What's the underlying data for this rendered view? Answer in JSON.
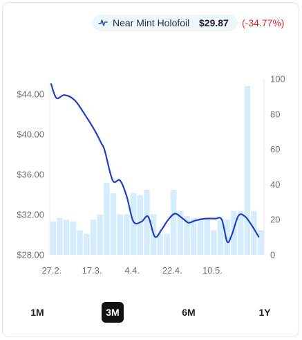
{
  "header": {
    "label": "Near Mint Holofoil",
    "price": "$29.87",
    "change": "(-34.77%)",
    "icon": "line-chart-icon",
    "change_color": "#d7262e"
  },
  "range_buttons": [
    {
      "label": "1M",
      "active": false
    },
    {
      "label": "3M",
      "active": true
    },
    {
      "label": "6M",
      "active": false
    },
    {
      "label": "1Y",
      "active": false
    }
  ],
  "chart_data": {
    "type": "line",
    "title": "",
    "x_tick_labels": [
      "27.2.",
      "17.3.",
      "4.4.",
      "22.4.",
      "10.5."
    ],
    "left_axis": {
      "ticks": [
        "$44.00",
        "$40.00",
        "$36.00",
        "$32.00",
        "$28.00"
      ],
      "ylim": [
        28,
        45.5
      ]
    },
    "right_axis": {
      "ticks": [
        "100",
        "80",
        "60",
        "40",
        "20",
        "0"
      ],
      "ylim": [
        0,
        100
      ]
    },
    "grid": false,
    "line_color": "#1f3fc0",
    "bar_color": "#d4ecfb",
    "series": [
      {
        "kind": "bars",
        "axis": "right",
        "values": [
          19,
          21,
          20,
          19,
          14,
          12,
          20,
          23,
          41,
          35,
          23,
          23,
          35,
          34,
          37,
          23,
          12,
          12,
          37,
          25,
          22,
          21,
          21,
          21,
          14,
          20,
          20,
          25,
          25,
          96,
          25,
          14
        ]
      },
      {
        "kind": "line",
        "axis": "left",
        "points": [
          [
            0,
            45.0
          ],
          [
            0.8,
            43.6
          ],
          [
            2.0,
            43.9
          ],
          [
            3.5,
            43.4
          ],
          [
            5.0,
            42.0
          ],
          [
            6.5,
            40.4
          ],
          [
            7.5,
            39.1
          ],
          [
            8.0,
            38.4
          ],
          [
            9.2,
            35.4
          ],
          [
            10.3,
            35.4
          ],
          [
            11.3,
            33.8
          ],
          [
            12.3,
            31.3
          ],
          [
            13.5,
            31.3
          ],
          [
            14.5,
            31.8
          ],
          [
            15.5,
            29.8
          ],
          [
            16.5,
            30.5
          ],
          [
            17.5,
            31.5
          ],
          [
            18.5,
            32.1
          ],
          [
            19.5,
            31.7
          ],
          [
            20.5,
            31.2
          ],
          [
            21.5,
            31.4
          ],
          [
            23.0,
            31.6
          ],
          [
            24.5,
            31.6
          ],
          [
            25.5,
            31.5
          ],
          [
            26.3,
            29.3
          ],
          [
            27.0,
            30.0
          ],
          [
            28.0,
            31.9
          ],
          [
            29.0,
            31.8
          ],
          [
            30.0,
            30.9
          ],
          [
            31.0,
            29.8
          ]
        ]
      }
    ]
  }
}
